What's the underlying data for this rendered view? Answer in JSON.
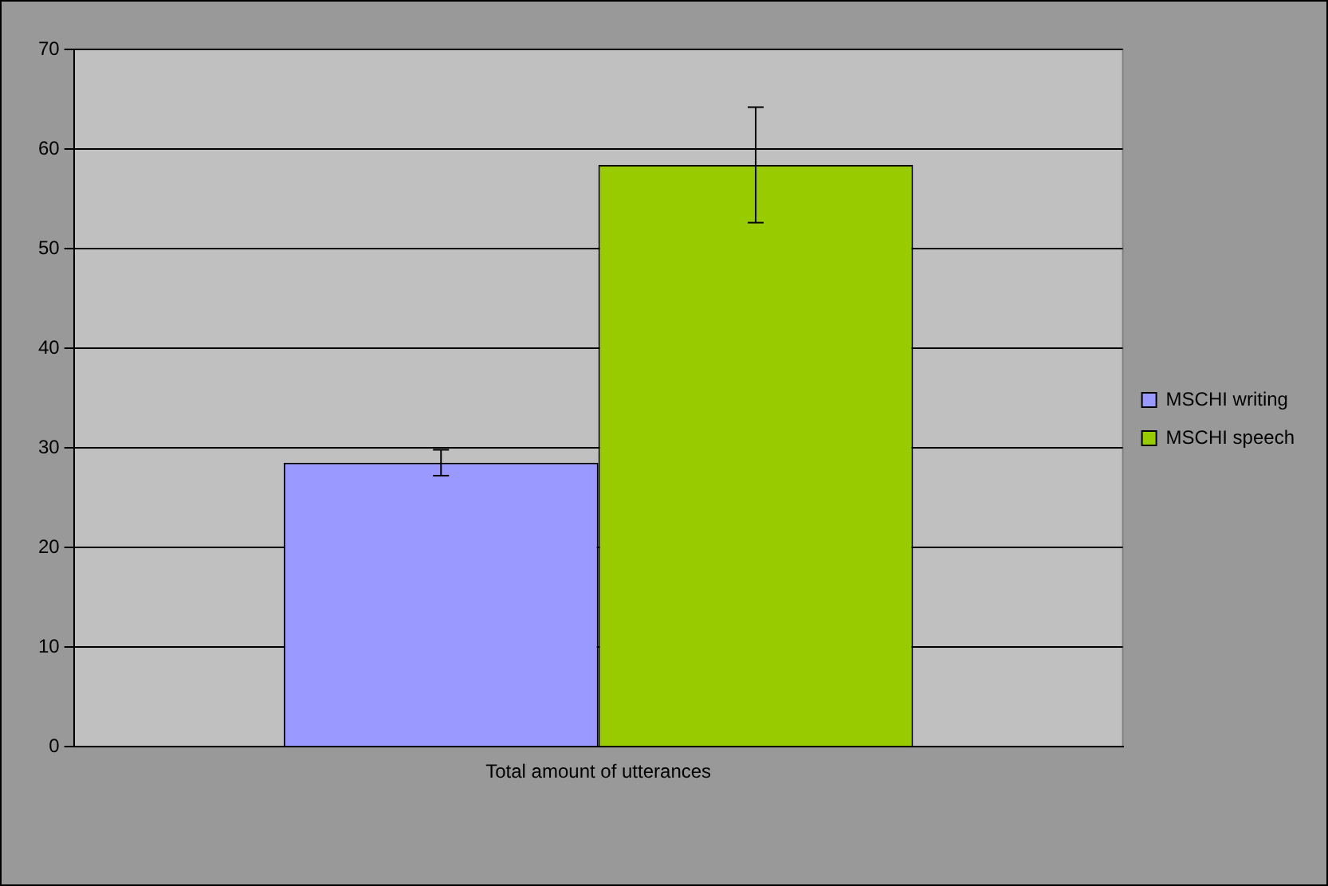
{
  "chart_data": {
    "type": "bar",
    "categories": [
      "Total amount of utterances"
    ],
    "series": [
      {
        "name": "MSCHI writing",
        "color": "#9999ff",
        "values": [
          28.5
        ],
        "errors": [
          1.3
        ]
      },
      {
        "name": "MSCHI speech",
        "color": "#99cc00",
        "values": [
          58.4
        ],
        "errors": [
          5.8
        ]
      }
    ],
    "ylim": [
      0,
      70
    ],
    "yticks": [
      0,
      10,
      20,
      30,
      40,
      50,
      60,
      70
    ],
    "grid": "y",
    "legend": "right"
  }
}
